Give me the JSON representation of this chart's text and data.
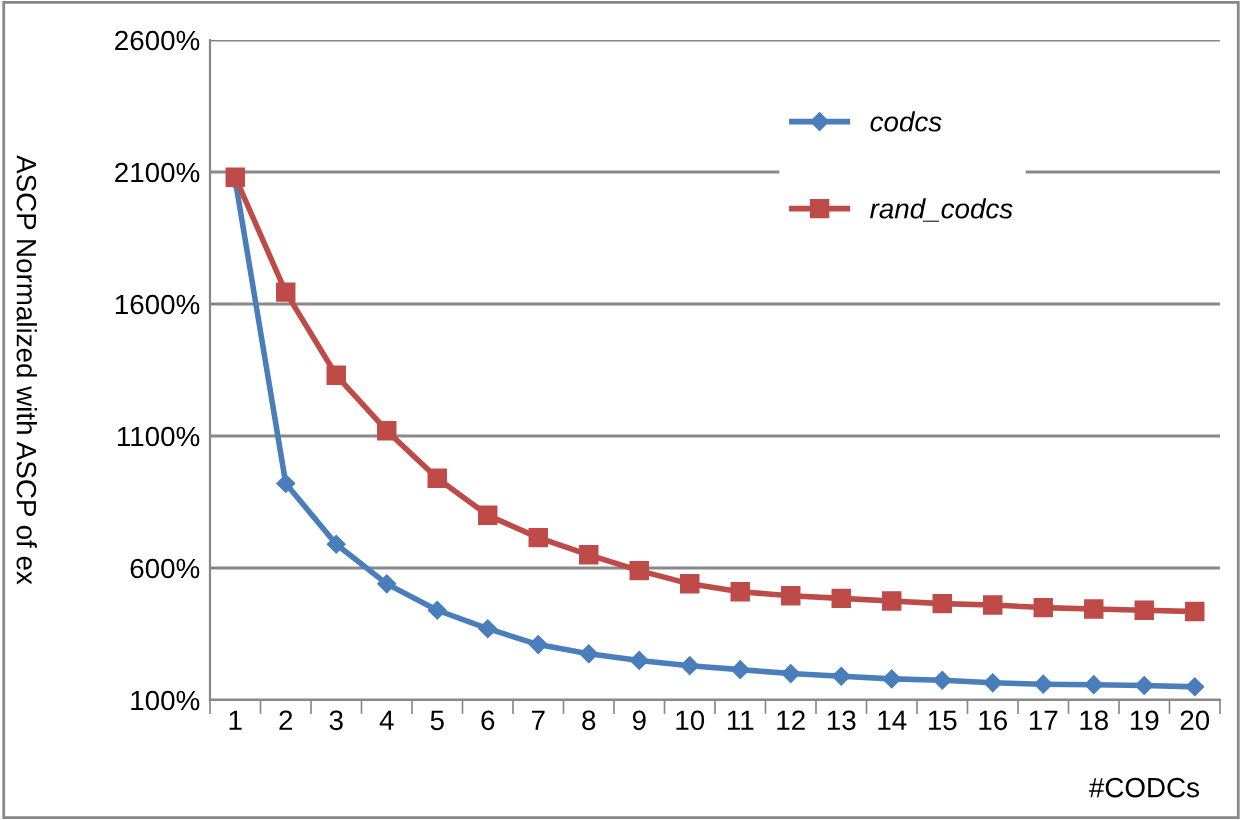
{
  "chart_data": {
    "type": "line",
    "ylabel": "ASCP Normalized with ASCP of ex",
    "xlabel": "#CODCs",
    "categories": [
      "1",
      "2",
      "3",
      "4",
      "5",
      "6",
      "7",
      "8",
      "9",
      "10",
      "11",
      "12",
      "13",
      "14",
      "15",
      "16",
      "17",
      "18",
      "19",
      "20"
    ],
    "series": [
      {
        "name": "codcs",
        "color": "#4a7ebb",
        "marker": "diamond",
        "values": [
          2070,
          920,
          690,
          540,
          440,
          370,
          310,
          275,
          250,
          230,
          215,
          200,
          190,
          180,
          175,
          165,
          160,
          158,
          155,
          150
        ]
      },
      {
        "name": "rand_codcs",
        "color": "#be4b48",
        "marker": "square",
        "values": [
          2080,
          1645,
          1330,
          1120,
          940,
          800,
          715,
          650,
          590,
          540,
          510,
          495,
          485,
          475,
          465,
          460,
          450,
          445,
          440,
          435
        ]
      }
    ],
    "ylim": [
      100,
      2600
    ],
    "yticks": [
      {
        "value": 100,
        "label": "100%"
      },
      {
        "value": 600,
        "label": "600%"
      },
      {
        "value": 1100,
        "label": "1100%"
      },
      {
        "value": 1600,
        "label": "1600%"
      },
      {
        "value": 2100,
        "label": "2100%"
      },
      {
        "value": 2600,
        "label": "2600%"
      }
    ],
    "grid": "y",
    "legend": "top right",
    "line_style": "solid"
  }
}
